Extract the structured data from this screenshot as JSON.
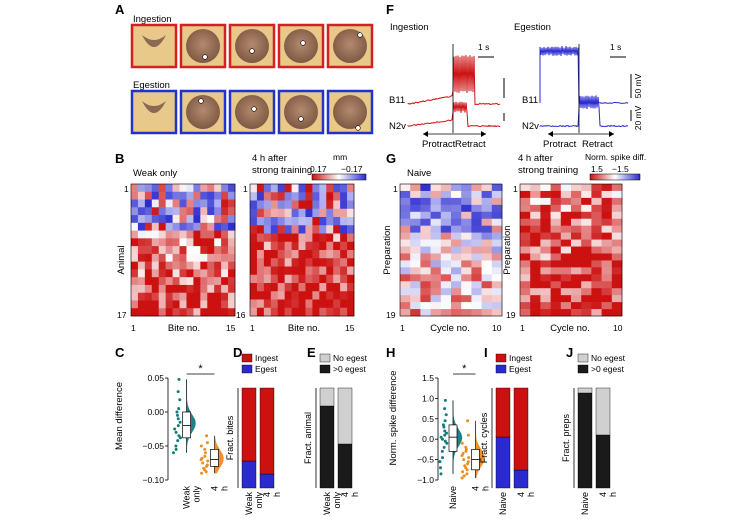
{
  "panels": {
    "A": {
      "letter": "A",
      "ingestion_label": "Ingestion",
      "egestion_label": "Egestion",
      "ingestion_border": "#d42020",
      "egestion_border": "#2233cc",
      "frames_per_row": 5
    },
    "B": {
      "letter": "B",
      "left_title": "Weak only",
      "right_title_line1": "4 h after",
      "right_title_line2": "strong training",
      "colorbar_unit": "mm",
      "colorbar_max": "0.17",
      "colorbar_min": "−0.17",
      "ylabel": "Animal",
      "xlabel": "Bite no.",
      "left_row_first": "1",
      "left_row_last": "17",
      "right_row_first": "1",
      "right_row_last": "16",
      "col_first": "1",
      "col_last": "15"
    },
    "C": {
      "letter": "C",
      "ylabel": "Mean difference",
      "yticks": [
        "0.05",
        "0.00",
        "−0.05",
        "−0.10"
      ],
      "categories": [
        "Weak only",
        "4 h"
      ],
      "sig": "*"
    },
    "D": {
      "letter": "D",
      "ylabel": "Fract. bites",
      "legend": [
        "Ingest",
        "Egest"
      ],
      "categories": [
        "Weak only",
        "4 h"
      ]
    },
    "E": {
      "letter": "E",
      "ylabel": "Fract. animal",
      "legend": [
        "No egest",
        ">0 egest"
      ],
      "categories": [
        "Weak only",
        "4 h"
      ]
    },
    "F": {
      "letter": "F",
      "left_title": "Ingestion",
      "right_title": "Egestion",
      "scale_time": "1 s",
      "trace_top": "B11",
      "trace_bottom": "N2v",
      "scale_v_top": "50 mV",
      "scale_v_bottom": "20 mV",
      "protract": "Protract",
      "retract": "Retract"
    },
    "G": {
      "letter": "G",
      "left_title": "Naive",
      "right_title_line1": "4 h after",
      "right_title_line2": "strong training",
      "colorbar_unit": "Norm. spike diff.",
      "colorbar_max": "1.5",
      "colorbar_min": "−1.5",
      "ylabel": "Preparation",
      "xlabel": "Cycle no.",
      "row_first": "1",
      "row_last": "19",
      "col_first": "1",
      "col_last": "10"
    },
    "H": {
      "letter": "H",
      "ylabel": "Norm. spike difference",
      "yticks": [
        "1.5",
        "1.0",
        "0.5",
        "0.0",
        "−0.5",
        "−1.0"
      ],
      "categories": [
        "Naive",
        "4 h"
      ],
      "sig": "*"
    },
    "I": {
      "letter": "I",
      "ylabel": "Fract. cycles",
      "legend": [
        "Ingest",
        "Egest"
      ],
      "categories": [
        "Naive",
        "4 h"
      ]
    },
    "J": {
      "letter": "J",
      "ylabel": "Fract. preps",
      "legend": [
        "No egest",
        ">0 egest"
      ],
      "categories": [
        "Naive",
        "4 h"
      ]
    }
  },
  "colors": {
    "red": "#cc1111",
    "blue": "#2a2ad0",
    "teal": "#127c7c",
    "orange": "#f08c1e",
    "gray": "#d0d0d0",
    "black": "#1a1a1a"
  },
  "chart_data": [
    {
      "type": "scatter",
      "panel": "C",
      "ylabel": "Mean difference",
      "ylim": [
        -0.1,
        0.05
      ],
      "categories": [
        "Weak only",
        "4 h"
      ],
      "series": [
        {
          "values": [
            0.048,
            0.03,
            0.018,
            0.005,
            0.0,
            -0.005,
            -0.01,
            -0.015,
            -0.02,
            -0.025,
            -0.03,
            -0.035,
            -0.038,
            -0.042,
            -0.05,
            -0.055,
            -0.06
          ]
        },
        {
          "values": [
            -0.035,
            -0.045,
            -0.05,
            -0.055,
            -0.06,
            -0.065,
            -0.068,
            -0.07,
            -0.072,
            -0.075,
            -0.078,
            -0.08,
            -0.083,
            -0.085,
            -0.088,
            -0.09
          ]
        }
      ]
    },
    {
      "type": "bar",
      "panel": "D",
      "ylabel": "Fract. bites",
      "ylim": [
        0,
        1
      ],
      "categories": [
        "Weak only",
        "4 h"
      ],
      "series": [
        {
          "name": "Egest",
          "values": [
            0.27,
            0.14
          ]
        },
        {
          "name": "Ingest",
          "values": [
            0.73,
            0.86
          ]
        }
      ]
    },
    {
      "type": "bar",
      "panel": "E",
      "ylabel": "Fract. animal",
      "ylim": [
        0,
        1
      ],
      "categories": [
        "Weak only",
        "4 h"
      ],
      "series": [
        {
          "name": ">0 egest",
          "values": [
            0.82,
            0.44
          ]
        },
        {
          "name": "No egest",
          "values": [
            0.18,
            0.56
          ]
        }
      ]
    },
    {
      "type": "scatter",
      "panel": "H",
      "ylabel": "Norm. spike difference",
      "ylim": [
        -1.0,
        1.5
      ],
      "categories": [
        "Naive",
        "4 h"
      ],
      "series": [
        {
          "values": [
            0.95,
            0.75,
            0.6,
            0.45,
            0.35,
            0.3,
            0.2,
            0.15,
            0.1,
            0.05,
            0.0,
            -0.05,
            -0.1,
            -0.2,
            -0.3,
            -0.45,
            -0.55,
            -0.7,
            -0.85
          ]
        },
        {
          "values": [
            0.45,
            0.1,
            -0.1,
            -0.2,
            -0.25,
            -0.3,
            -0.35,
            -0.4,
            -0.45,
            -0.5,
            -0.55,
            -0.6,
            -0.65,
            -0.7,
            -0.75,
            -0.8,
            -0.85,
            -0.9,
            -0.95
          ]
        }
      ]
    },
    {
      "type": "bar",
      "panel": "I",
      "ylabel": "Fract. cycles",
      "ylim": [
        0,
        1
      ],
      "categories": [
        "Naive",
        "4 h"
      ],
      "series": [
        {
          "name": "Egest",
          "values": [
            0.51,
            0.18
          ]
        },
        {
          "name": "Ingest",
          "values": [
            0.49,
            0.82
          ]
        }
      ]
    },
    {
      "type": "bar",
      "panel": "J",
      "ylabel": "Fract. preps",
      "ylim": [
        0,
        1
      ],
      "categories": [
        "Naive",
        "4 h"
      ],
      "series": [
        {
          "name": ">0 egest",
          "values": [
            0.95,
            0.53
          ]
        },
        {
          "name": "No egest",
          "values": [
            0.05,
            0.47
          ]
        }
      ]
    }
  ]
}
